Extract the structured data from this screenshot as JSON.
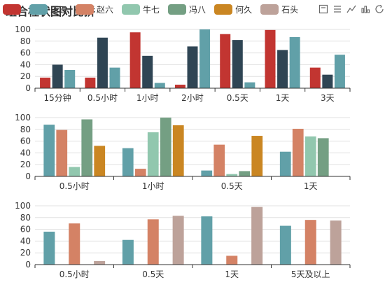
{
  "title": "组合柱状图对比拼",
  "legend": [
    {
      "name": "",
      "color": "#c23531"
    },
    {
      "name": "王五",
      "color": "#61a0a8"
    },
    {
      "name": "赵六",
      "color": "#d48265"
    },
    {
      "name": "牛七",
      "color": "#91c7ae"
    },
    {
      "name": "冯八",
      "color": "#749f83"
    },
    {
      "name": "何久",
      "color": "#ca8622"
    },
    {
      "name": "石头",
      "color": "#bda29a"
    }
  ],
  "toolbox": [
    "restore-icon",
    "data-view-icon",
    "line-chart-icon",
    "bar-chart-icon",
    "refresh-icon"
  ],
  "chart_data": [
    {
      "type": "bar",
      "ylim": [
        0,
        100
      ],
      "yticks": [
        0,
        20,
        40,
        60,
        80,
        100
      ],
      "grid": true,
      "legend_position": "top",
      "categories": [
        "15分钟",
        "0.5小时",
        "1小时",
        "2小时",
        "0.5天",
        "1天",
        "3天"
      ],
      "series": [
        {
          "color": "#c23531",
          "values": [
            18,
            18,
            95,
            6,
            92,
            99,
            35
          ]
        },
        {
          "color": "#2f4554",
          "values": [
            40,
            86,
            55,
            71,
            82,
            65,
            23
          ]
        },
        {
          "color": "#61a0a8",
          "values": [
            31,
            35,
            9,
            100,
            10,
            87,
            57
          ]
        }
      ]
    },
    {
      "type": "bar",
      "ylim": [
        0,
        100
      ],
      "yticks": [
        0,
        20,
        40,
        60,
        80,
        100
      ],
      "grid": true,
      "categories": [
        "0.5小时",
        "1小时",
        "0.5天",
        "1天"
      ],
      "series": [
        {
          "name": "王五",
          "color": "#61a0a8",
          "values": [
            88,
            48,
            10,
            42
          ]
        },
        {
          "name": "赵六",
          "color": "#d48265",
          "values": [
            79,
            13,
            54,
            81
          ]
        },
        {
          "name": "牛七",
          "color": "#91c7ae",
          "values": [
            16,
            75,
            4,
            68
          ]
        },
        {
          "name": "冯八",
          "color": "#749f83",
          "values": [
            97,
            100,
            9,
            65
          ]
        },
        {
          "name": "何久",
          "color": "#ca8622",
          "values": [
            52,
            87,
            69,
            null
          ]
        }
      ]
    },
    {
      "type": "bar",
      "ylim": [
        0,
        100
      ],
      "yticks": [
        0,
        20,
        40,
        60,
        80,
        100
      ],
      "grid": true,
      "categories": [
        "0.5小时",
        "0.5天",
        "1天",
        "5天及以上"
      ],
      "series": [
        {
          "name": "王五",
          "color": "#61a0a8",
          "values": [
            56,
            42,
            82,
            66
          ]
        },
        {
          "name": "赵六",
          "color": "#d48265",
          "values": [
            70,
            77,
            15,
            76
          ]
        },
        {
          "name": "石头",
          "color": "#bda29a",
          "values": [
            6,
            83,
            98,
            75
          ]
        }
      ]
    }
  ]
}
